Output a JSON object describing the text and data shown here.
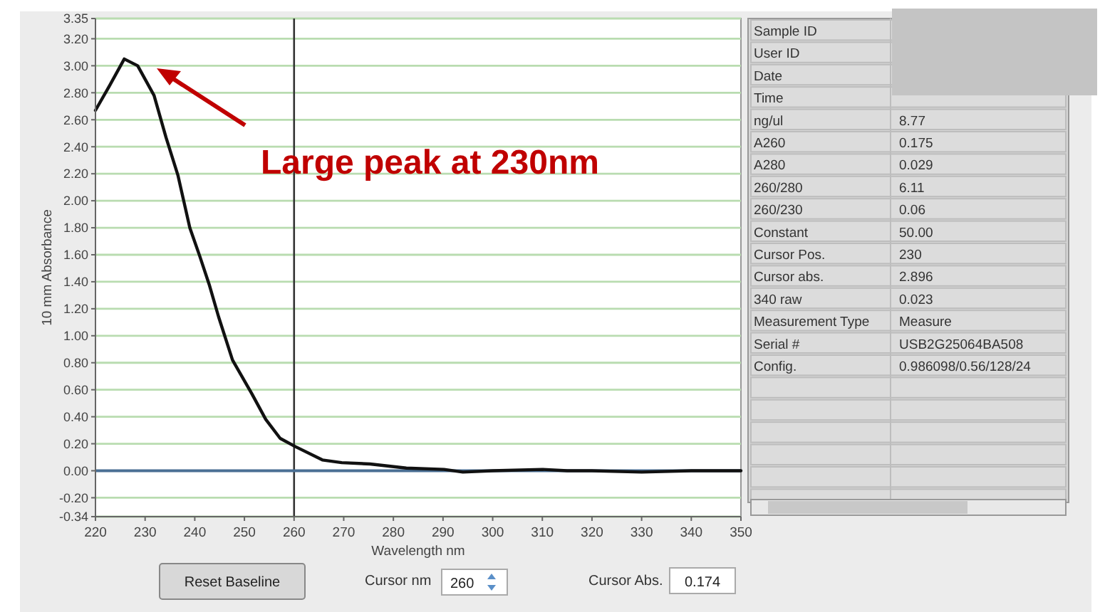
{
  "chart_data": {
    "type": "line",
    "xlabel": "Wavelength nm",
    "ylabel": "10 mm Absorbance",
    "x": [
      220,
      222.8,
      225.8,
      228.5,
      231.8,
      234.2,
      236.6,
      239,
      241,
      242.9,
      244.8,
      247.6,
      251.5,
      254.3,
      257.2,
      260.2,
      265.7,
      269.6,
      275.3,
      282.6,
      290.2,
      294,
      300,
      310,
      315,
      320,
      330,
      340,
      350
    ],
    "series": [
      {
        "color": "#111111",
        "values": [
          2.67,
          2.85,
          3.05,
          3.0,
          2.78,
          2.47,
          2.19,
          1.8,
          1.59,
          1.38,
          1.14,
          0.82,
          0.57,
          0.38,
          0.24,
          0.18,
          0.08,
          0.06,
          0.05,
          0.02,
          0.01,
          -0.01,
          0.0,
          0.01,
          0.0,
          0.0,
          -0.01,
          0.0,
          0.0
        ]
      }
    ],
    "xlim": [
      220,
      350
    ],
    "xticks": [
      220,
      230,
      240,
      250,
      260,
      270,
      280,
      290,
      300,
      310,
      320,
      330,
      340,
      350
    ],
    "ylim": [
      -0.34,
      3.35
    ],
    "yticks": [
      {
        "value": 3.35,
        "label": "3.35"
      },
      {
        "value": 3.2,
        "label": "3.20"
      },
      {
        "value": 3,
        "label": "3.00"
      },
      {
        "value": 2.8,
        "label": "2.80"
      },
      {
        "value": 2.6,
        "label": "2.60"
      },
      {
        "value": 2.4,
        "label": "2.40"
      },
      {
        "value": 2.2,
        "label": "2.20"
      },
      {
        "value": 2,
        "label": "2.00"
      },
      {
        "value": 1.8,
        "label": "1.80"
      },
      {
        "value": 1.6,
        "label": "1.60"
      },
      {
        "value": 1.4,
        "label": "1.40"
      },
      {
        "value": 1.2,
        "label": "1.20"
      },
      {
        "value": 1,
        "label": "1.00"
      },
      {
        "value": 0.8,
        "label": "0.80"
      },
      {
        "value": 0.6,
        "label": "0.60"
      },
      {
        "value": 0.4,
        "label": "0.40"
      },
      {
        "value": 0.2,
        "label": "0.20"
      },
      {
        "value": 0,
        "label": "0.00"
      },
      {
        "value": -0.2,
        "label": "-0.20"
      },
      {
        "value": -0.34,
        "label": "-0.34"
      }
    ],
    "grid": "y",
    "marker": "none",
    "line_style": "solid",
    "ref_lines": [
      {
        "axis": "x",
        "value": 260,
        "color": "#333333"
      },
      {
        "axis": "y",
        "value": 0,
        "color": "#4a6f94"
      }
    ],
    "annotations": [
      "Large peak at 230nm",
      "Reset Baseline",
      "Cursor nm",
      "260",
      "Cursor Abs.",
      "0.174",
      "Sample ID",
      "User ID",
      "Date",
      "Time",
      "ng/ul",
      "8.77",
      "A260",
      "0.175",
      "A280",
      "0.029",
      "260/280",
      "6.11",
      "260/230",
      "0.06",
      "Constant",
      "50.00",
      "Cursor Pos.",
      "230",
      "Cursor abs.",
      "2.896",
      "340 raw",
      "0.023",
      "Measurement Type",
      "Measure",
      "Serial #",
      "USB2G25064BA508",
      "Config.",
      "0.986098/0.56/128/24"
    ]
  }
}
